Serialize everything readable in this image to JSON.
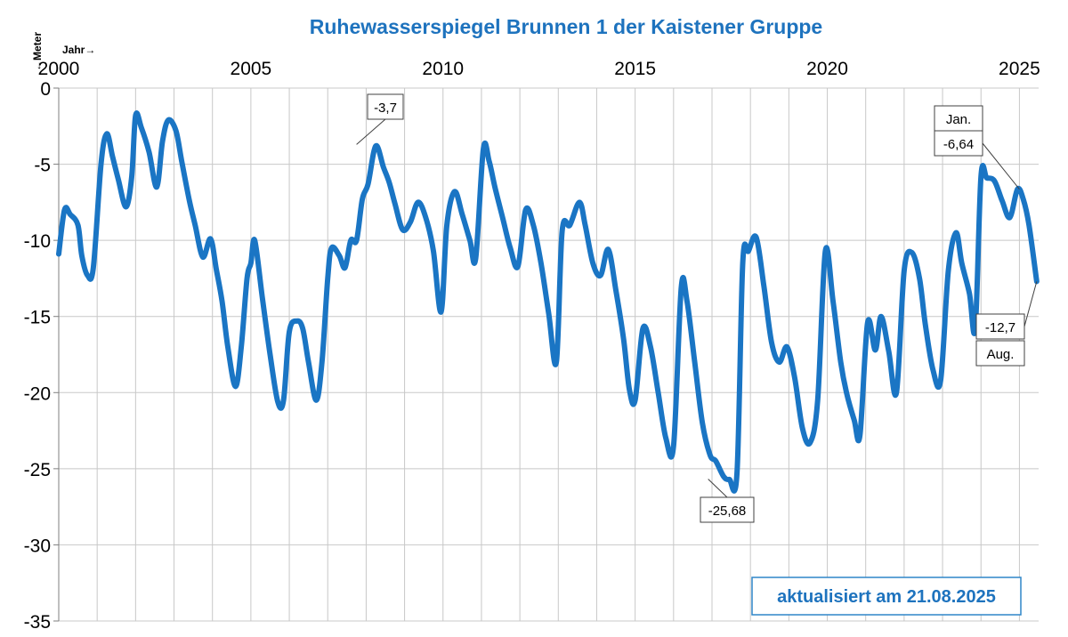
{
  "chart_data": {
    "type": "line",
    "title": "Ruhewasserspiegel Brunnen 1 der Kaistener Gruppe",
    "y_unit_label": "←Meter",
    "x_unit_label": "Jahr→",
    "xlim": [
      2000,
      2025.5
    ],
    "ylim": [
      -35,
      0
    ],
    "x_ticks": [
      "2000",
      "2005",
      "2010",
      "2015",
      "2020",
      "2025"
    ],
    "y_ticks": [
      "0",
      "-5",
      "-10",
      "-15",
      "-20",
      "-25",
      "-30",
      "-35"
    ],
    "grid": true,
    "line_color": "#1a75c4",
    "series": [
      {
        "x": [
          2000.0,
          2000.15,
          2000.3,
          2000.5,
          2000.6,
          2000.75,
          2000.9,
          2001.1,
          2001.25,
          2001.4,
          2001.55,
          2001.75,
          2001.9,
          2002.0,
          2002.15,
          2002.35,
          2002.55,
          2002.7,
          2002.85,
          2003.05,
          2003.2,
          2003.4,
          2003.55,
          2003.75,
          2003.95,
          2004.1,
          2004.25,
          2004.4,
          2004.6,
          2004.75,
          2004.9,
          2005.0,
          2005.1,
          2005.3,
          2005.5,
          2005.7,
          2005.85,
          2006.0,
          2006.2,
          2006.35,
          2006.5,
          2006.7,
          2006.85,
          2007.0,
          2007.1,
          2007.3,
          2007.45,
          2007.6,
          2007.75,
          2007.9,
          2008.05,
          2008.25,
          2008.45,
          2008.6,
          2008.75,
          2008.95,
          2009.15,
          2009.35,
          2009.55,
          2009.75,
          2009.95,
          2010.1,
          2010.3,
          2010.5,
          2010.7,
          2010.85,
          2011.05,
          2011.2,
          2011.35,
          2011.55,
          2011.75,
          2011.95,
          2012.15,
          2012.35,
          2012.55,
          2012.75,
          2012.95,
          2013.1,
          2013.3,
          2013.55,
          2013.7,
          2013.9,
          2014.1,
          2014.3,
          2014.5,
          2014.7,
          2014.85,
          2015.0,
          2015.2,
          2015.4,
          2015.6,
          2015.8,
          2016.0,
          2016.2,
          2016.35,
          2016.55,
          2016.75,
          2016.95,
          2017.1,
          2017.3,
          2017.45,
          2017.65,
          2017.8,
          2017.95,
          2018.15,
          2018.35,
          2018.55,
          2018.75,
          2018.95,
          2019.15,
          2019.35,
          2019.55,
          2019.75,
          2019.95,
          2020.15,
          2020.35,
          2020.5,
          2020.7,
          2020.85,
          2021.05,
          2021.25,
          2021.4,
          2021.6,
          2021.8,
          2022.0,
          2022.2,
          2022.4,
          2022.55,
          2022.75,
          2022.95,
          2023.15,
          2023.35,
          2023.5,
          2023.7,
          2023.85,
          2024.0,
          2024.15,
          2024.35,
          2024.55,
          2024.75,
          2024.95,
          2025.1,
          2025.25,
          2025.45
        ],
        "y": [
          -10.9,
          -8.0,
          -8.3,
          -9.0,
          -11.0,
          -12.3,
          -11.8,
          -5.0,
          -3.0,
          -4.5,
          -6.0,
          -7.8,
          -5.8,
          -1.8,
          -2.6,
          -4.2,
          -6.5,
          -3.5,
          -2.1,
          -2.8,
          -4.8,
          -7.4,
          -9.0,
          -11.1,
          -9.9,
          -11.9,
          -14.0,
          -17.0,
          -19.6,
          -17.0,
          -12.5,
          -11.5,
          -10.0,
          -13.8,
          -17.5,
          -20.6,
          -20.5,
          -16.0,
          -15.3,
          -15.8,
          -18.0,
          -20.5,
          -18.0,
          -12.5,
          -10.5,
          -11.0,
          -11.8,
          -10.0,
          -10.0,
          -7.3,
          -6.3,
          -3.8,
          -5.2,
          -6.2,
          -7.6,
          -9.3,
          -8.8,
          -7.5,
          -8.5,
          -10.7,
          -14.7,
          -9.0,
          -6.8,
          -8.3,
          -10.0,
          -11.2,
          -4.0,
          -4.8,
          -6.5,
          -8.5,
          -10.5,
          -11.7,
          -8.0,
          -9.0,
          -11.5,
          -14.8,
          -18.0,
          -9.4,
          -9.0,
          -7.5,
          -9.0,
          -11.5,
          -12.3,
          -10.6,
          -13.3,
          -16.5,
          -19.8,
          -20.5,
          -15.8,
          -17.0,
          -20.0,
          -23.0,
          -23.5,
          -13.1,
          -14.0,
          -18.0,
          -22.0,
          -24.1,
          -24.5,
          -25.5,
          -25.7,
          -25.3,
          -11.5,
          -10.7,
          -9.8,
          -13.0,
          -16.7,
          -18.0,
          -17.0,
          -19.0,
          -22.3,
          -23.3,
          -20.5,
          -10.7,
          -14.0,
          -18.0,
          -20.0,
          -21.8,
          -22.8,
          -15.4,
          -17.2,
          -15.0,
          -17.3,
          -20.0,
          -12.0,
          -10.8,
          -12.5,
          -15.5,
          -18.5,
          -19.2,
          -12.0,
          -9.5,
          -11.5,
          -13.5,
          -15.8,
          -5.8,
          -5.9,
          -6.1,
          -7.4,
          -8.5,
          -6.64,
          -7.3,
          -9.0,
          -12.7
        ]
      }
    ],
    "annotations": [
      {
        "label": "-3,7",
        "x": 2007.75,
        "y": -3.7
      },
      {
        "label": "-25,68",
        "x": 2016.9,
        "y": -25.68
      },
      {
        "label": "-6,64",
        "sublabel": "Jan.",
        "x": 2025.0,
        "y": -6.64
      },
      {
        "label": "-12,7",
        "sublabel": "Aug.",
        "x": 2025.45,
        "y": -12.7
      }
    ],
    "stamp": "aktualisiert am 21.08.2025"
  }
}
